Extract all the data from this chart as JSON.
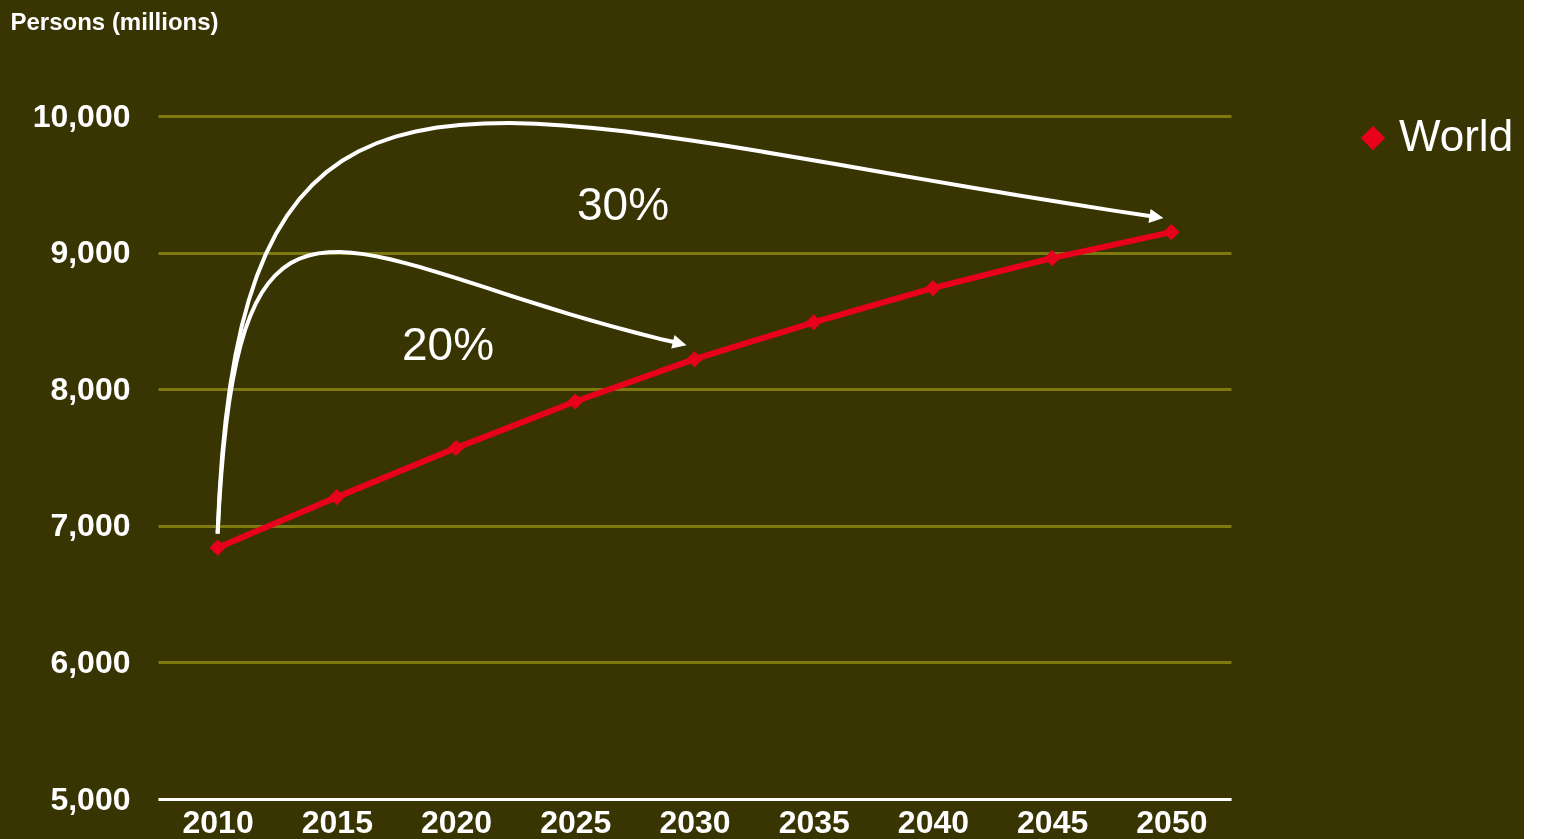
{
  "chart_data": {
    "type": "line",
    "ylabel": "Persons (millions)",
    "categories": [
      "2010",
      "2015",
      "2020",
      "2025",
      "2030",
      "2035",
      "2040",
      "2045",
      "2050"
    ],
    "series": [
      {
        "name": "World",
        "color": "#e8001c",
        "values": [
          6840,
          7210,
          7570,
          7910,
          8220,
          8490,
          8740,
          8960,
          9150
        ]
      }
    ],
    "ylim": [
      5000,
      10000
    ],
    "yticks": [
      {
        "value": 5000,
        "label": "5,000"
      },
      {
        "value": 6000,
        "label": "6,000"
      },
      {
        "value": 7000,
        "label": "7,000"
      },
      {
        "value": 8000,
        "label": "8,000"
      },
      {
        "value": 9000,
        "label": "9,000"
      },
      {
        "value": 10000,
        "label": "10,000"
      }
    ],
    "annotations": [
      "20%",
      "30%"
    ],
    "grid": "y",
    "legend": "right",
    "marker": "diamond",
    "line_style": "solid"
  }
}
